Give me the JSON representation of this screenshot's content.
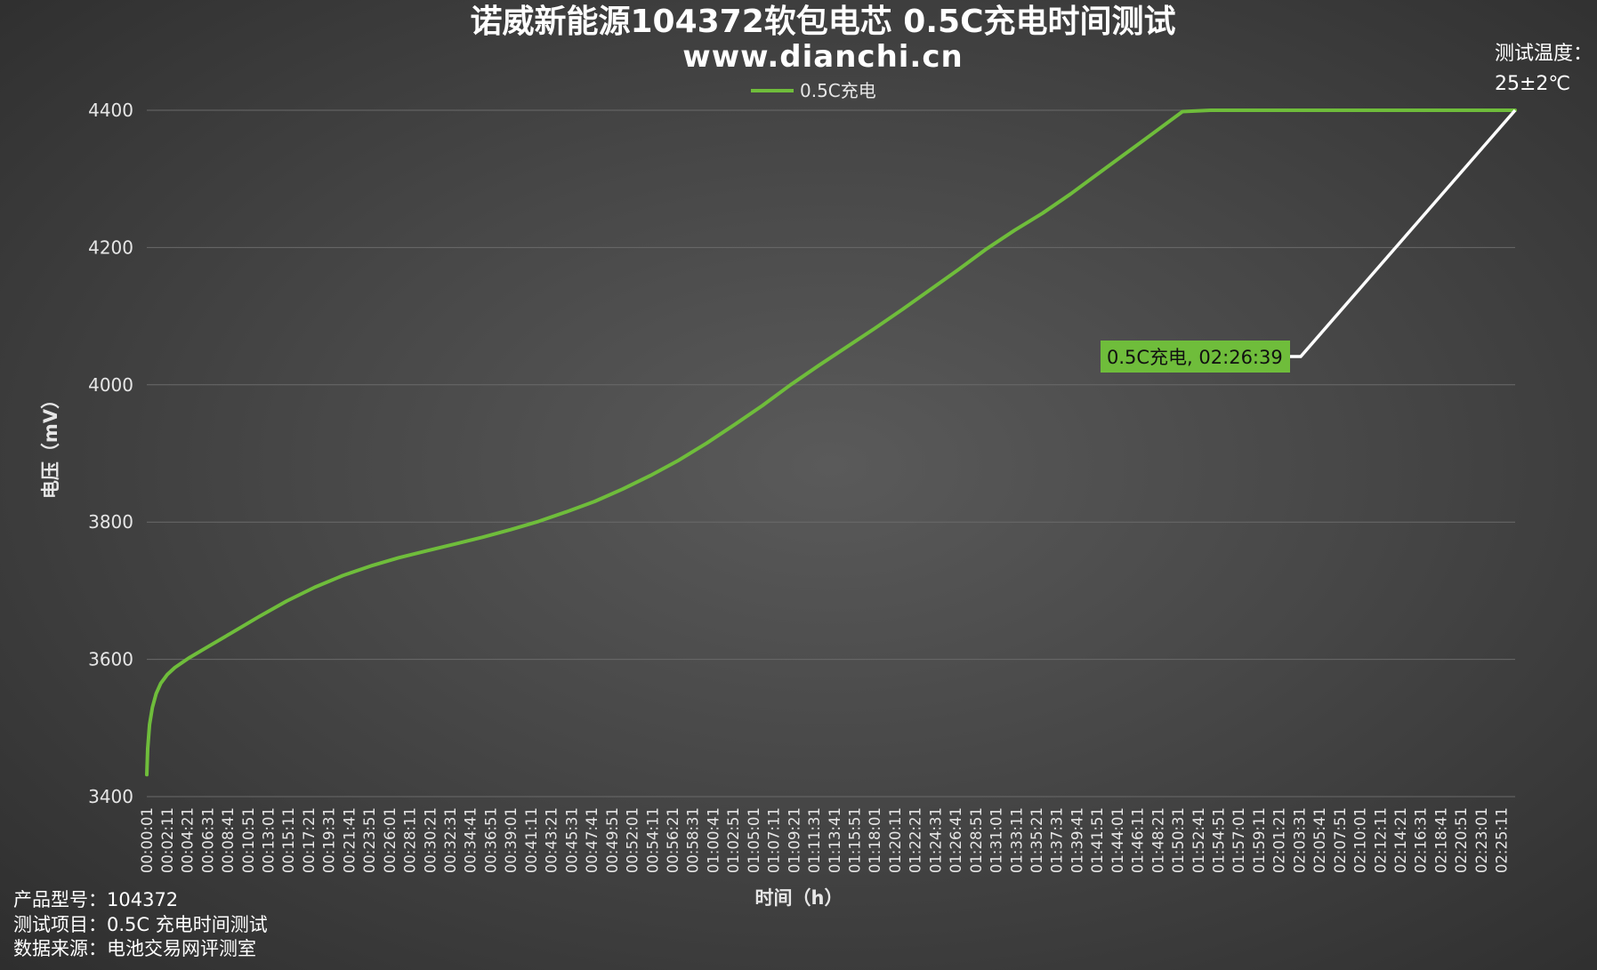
{
  "chart_data": {
    "type": "line",
    "title": "诺威新能源104372软包电芯 0.5C充电时间测试",
    "subtitle": "www.dianchi.cn",
    "xlabel": "时间（h）",
    "ylabel": "电压（mV）",
    "ylim": [
      3400,
      4400
    ],
    "yticks": [
      "3400",
      "3600",
      "3800",
      "4000",
      "4200",
      "4400"
    ],
    "grid": "horizontal",
    "legend_position": "top-center",
    "x_tick_labels": [
      "00:00:01",
      "00:02:11",
      "00:04:21",
      "00:06:31",
      "00:08:41",
      "00:10:51",
      "00:13:01",
      "00:15:11",
      "00:17:21",
      "00:19:31",
      "00:21:41",
      "00:23:51",
      "00:26:01",
      "00:28:11",
      "00:30:21",
      "00:32:31",
      "00:34:41",
      "00:36:51",
      "00:39:01",
      "00:41:11",
      "00:43:21",
      "00:45:31",
      "00:47:41",
      "00:49:51",
      "00:52:01",
      "00:54:11",
      "00:56:21",
      "00:58:31",
      "01:00:41",
      "01:02:51",
      "01:05:01",
      "01:07:11",
      "01:09:21",
      "01:11:31",
      "01:13:41",
      "01:15:51",
      "01:18:01",
      "01:20:11",
      "01:22:21",
      "01:24:31",
      "01:26:41",
      "01:28:51",
      "01:31:01",
      "01:33:11",
      "01:35:21",
      "01:37:31",
      "01:39:41",
      "01:41:51",
      "01:44:01",
      "01:46:11",
      "01:48:21",
      "01:50:31",
      "01:52:41",
      "01:54:51",
      "01:57:01",
      "01:59:11",
      "02:01:21",
      "02:03:31",
      "02:05:41",
      "02:07:51",
      "02:10:01",
      "02:12:11",
      "02:14:21",
      "02:16:31",
      "02:18:41",
      "02:20:51",
      "02:23:01",
      "02:25:11"
    ],
    "series": [
      {
        "name": "0.5C充电",
        "color": "#6fbd3b",
        "x_minutes": [
          0.0,
          0.1,
          0.3,
          0.6,
          1.0,
          1.5,
          2.2,
          3.0,
          4.5,
          6.5,
          9.0,
          12.0,
          15.0,
          18.0,
          21.0,
          24.0,
          27.0,
          30.0,
          33.0,
          36.0,
          39.0,
          42.0,
          45.0,
          48.0,
          51.0,
          54.0,
          57.0,
          60.0,
          63.0,
          66.0,
          69.0,
          72.0,
          75.0,
          78.0,
          81.0,
          84.0,
          87.0,
          90.0,
          93.0,
          96.0,
          99.0,
          102.0,
          105.0,
          108.0,
          111.0,
          114.0,
          117.0,
          120.0,
          125.0,
          130.0,
          135.0,
          140.0,
          145.0,
          146.65
        ],
        "y_mV": [
          3432,
          3470,
          3505,
          3530,
          3550,
          3565,
          3578,
          3588,
          3602,
          3618,
          3638,
          3662,
          3685,
          3705,
          3722,
          3736,
          3748,
          3758,
          3768,
          3778,
          3789,
          3801,
          3815,
          3830,
          3848,
          3868,
          3890,
          3915,
          3942,
          3970,
          4000,
          4028,
          4055,
          4082,
          4110,
          4139,
          4168,
          4198,
          4225,
          4250,
          4278,
          4308,
          4338,
          4368,
          4398,
          4400,
          4400,
          4400,
          4400,
          4400,
          4400,
          4400,
          4400,
          4400
        ]
      }
    ],
    "annotation": {
      "label": "0.5C充电, 02:26:39",
      "background": "#6fbd3b"
    }
  },
  "test_temperature": {
    "label": "测试温度：",
    "value": "25±2℃"
  },
  "info": {
    "model": "产品型号：104372",
    "item": "测试项目：0.5C 充电时间测试",
    "source": "数据来源：电池交易网评测室"
  }
}
